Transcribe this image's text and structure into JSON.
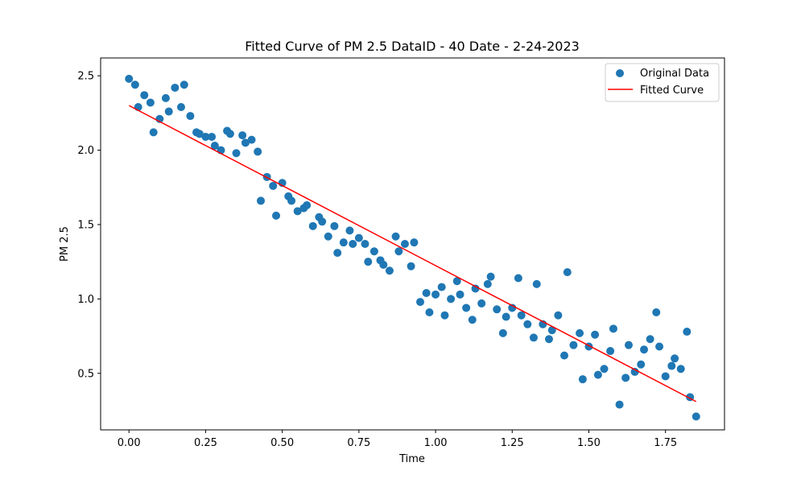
{
  "chart_data": {
    "type": "scatter",
    "title": "Fitted Curve of PM 2.5 DataID - 40 Date - 2-24-2023",
    "xlabel": "Time",
    "ylabel": "PM 2.5",
    "xlim": [
      -0.0925,
      1.9425
    ],
    "ylim": [
      0.12,
      2.62
    ],
    "xticks": [
      0.0,
      0.25,
      0.5,
      0.75,
      1.0,
      1.25,
      1.5,
      1.75
    ],
    "xtick_labels": [
      "0.00",
      "0.25",
      "0.50",
      "0.75",
      "1.00",
      "1.25",
      "1.50",
      "1.75"
    ],
    "yticks": [
      0.5,
      1.0,
      1.5,
      2.0,
      2.5
    ],
    "ytick_labels": [
      "0.5",
      "1.0",
      "1.5",
      "2.0",
      "2.5"
    ],
    "grid": false,
    "legend_position": "top-right",
    "series": [
      {
        "name": "Original Data",
        "kind": "scatter",
        "color": "#1f77b4",
        "points": [
          [
            0.0,
            2.48
          ],
          [
            0.02,
            2.44
          ],
          [
            0.03,
            2.29
          ],
          [
            0.05,
            2.37
          ],
          [
            0.07,
            2.32
          ],
          [
            0.08,
            2.12
          ],
          [
            0.1,
            2.21
          ],
          [
            0.12,
            2.35
          ],
          [
            0.13,
            2.26
          ],
          [
            0.15,
            2.42
          ],
          [
            0.17,
            2.29
          ],
          [
            0.18,
            2.44
          ],
          [
            0.2,
            2.23
          ],
          [
            0.22,
            2.12
          ],
          [
            0.23,
            2.11
          ],
          [
            0.25,
            2.09
          ],
          [
            0.27,
            2.09
          ],
          [
            0.28,
            2.03
          ],
          [
            0.3,
            2.0
          ],
          [
            0.32,
            2.13
          ],
          [
            0.33,
            2.11
          ],
          [
            0.35,
            1.98
          ],
          [
            0.37,
            2.1
          ],
          [
            0.38,
            2.05
          ],
          [
            0.4,
            2.07
          ],
          [
            0.42,
            1.99
          ],
          [
            0.43,
            1.66
          ],
          [
            0.45,
            1.82
          ],
          [
            0.47,
            1.76
          ],
          [
            0.48,
            1.56
          ],
          [
            0.5,
            1.78
          ],
          [
            0.52,
            1.69
          ],
          [
            0.53,
            1.66
          ],
          [
            0.55,
            1.59
          ],
          [
            0.57,
            1.61
          ],
          [
            0.58,
            1.63
          ],
          [
            0.6,
            1.49
          ],
          [
            0.62,
            1.55
          ],
          [
            0.63,
            1.52
          ],
          [
            0.65,
            1.42
          ],
          [
            0.67,
            1.49
          ],
          [
            0.68,
            1.31
          ],
          [
            0.7,
            1.38
          ],
          [
            0.72,
            1.46
          ],
          [
            0.73,
            1.37
          ],
          [
            0.75,
            1.41
          ],
          [
            0.77,
            1.37
          ],
          [
            0.78,
            1.25
          ],
          [
            0.8,
            1.32
          ],
          [
            0.82,
            1.26
          ],
          [
            0.83,
            1.23
          ],
          [
            0.85,
            1.19
          ],
          [
            0.87,
            1.42
          ],
          [
            0.88,
            1.32
          ],
          [
            0.9,
            1.37
          ],
          [
            0.92,
            1.22
          ],
          [
            0.93,
            1.38
          ],
          [
            0.95,
            0.98
          ],
          [
            0.97,
            1.04
          ],
          [
            0.98,
            0.91
          ],
          [
            1.0,
            1.03
          ],
          [
            1.02,
            1.08
          ],
          [
            1.03,
            0.89
          ],
          [
            1.05,
            1.0
          ],
          [
            1.07,
            1.12
          ],
          [
            1.08,
            1.03
          ],
          [
            1.1,
            0.94
          ],
          [
            1.12,
            0.86
          ],
          [
            1.13,
            1.07
          ],
          [
            1.15,
            0.97
          ],
          [
            1.17,
            1.1
          ],
          [
            1.18,
            1.15
          ],
          [
            1.2,
            0.93
          ],
          [
            1.22,
            0.77
          ],
          [
            1.23,
            0.88
          ],
          [
            1.25,
            0.94
          ],
          [
            1.27,
            1.14
          ],
          [
            1.28,
            0.89
          ],
          [
            1.3,
            0.83
          ],
          [
            1.32,
            0.74
          ],
          [
            1.33,
            1.1
          ],
          [
            1.35,
            0.83
          ],
          [
            1.37,
            0.73
          ],
          [
            1.38,
            0.79
          ],
          [
            1.4,
            0.89
          ],
          [
            1.42,
            0.62
          ],
          [
            1.43,
            1.18
          ],
          [
            1.45,
            0.69
          ],
          [
            1.47,
            0.77
          ],
          [
            1.48,
            0.46
          ],
          [
            1.5,
            0.68
          ],
          [
            1.52,
            0.76
          ],
          [
            1.53,
            0.49
          ],
          [
            1.55,
            0.53
          ],
          [
            1.57,
            0.65
          ],
          [
            1.58,
            0.8
          ],
          [
            1.6,
            0.29
          ],
          [
            1.62,
            0.47
          ],
          [
            1.63,
            0.69
          ],
          [
            1.65,
            0.51
          ],
          [
            1.67,
            0.56
          ],
          [
            1.68,
            0.66
          ],
          [
            1.7,
            0.73
          ],
          [
            1.72,
            0.91
          ],
          [
            1.73,
            0.68
          ],
          [
            1.75,
            0.48
          ],
          [
            1.77,
            0.55
          ],
          [
            1.78,
            0.6
          ],
          [
            1.8,
            0.53
          ],
          [
            1.82,
            0.78
          ],
          [
            1.83,
            0.34
          ],
          [
            1.85,
            0.21
          ]
        ]
      },
      {
        "name": "Fitted Curve",
        "kind": "line",
        "color": "#ff0000",
        "points": [
          [
            0.0,
            2.3
          ],
          [
            1.85,
            0.31
          ]
        ]
      }
    ]
  }
}
